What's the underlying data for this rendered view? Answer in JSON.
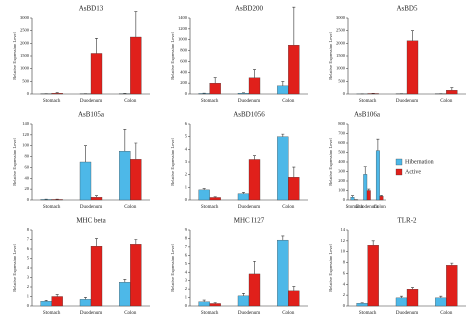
{
  "chart_data": [
    {
      "type": "bar",
      "title": "AsBD13",
      "y_label": "Relative Expression Level",
      "categories": [
        "Stomach",
        "Duodenum",
        "Colon"
      ],
      "ylim": [
        0,
        3000
      ],
      "yticks": [
        0,
        500,
        1000,
        1500,
        2000,
        2500,
        3000
      ],
      "series": [
        {
          "color": "#4db8e8",
          "values": [
            8,
            10,
            15
          ],
          "errors": [
            5,
            5,
            8
          ]
        },
        {
          "color": "#e0201b",
          "values": [
            30,
            1600,
            2250
          ],
          "errors": [
            20,
            600,
            1000
          ]
        }
      ]
    },
    {
      "type": "bar",
      "title": "AsBD200",
      "y_label": "Relative Expression Level",
      "categories": [
        "Stomach",
        "Duodenum",
        "Colon"
      ],
      "ylim": [
        0,
        1400
      ],
      "yticks": [
        0,
        200,
        400,
        600,
        800,
        1000,
        1200,
        1400
      ],
      "series": [
        {
          "color": "#4db8e8",
          "values": [
            10,
            15,
            150
          ],
          "errors": [
            5,
            8,
            80
          ]
        },
        {
          "color": "#e0201b",
          "values": [
            200,
            300,
            900
          ],
          "errors": [
            100,
            150,
            700
          ]
        }
      ]
    },
    {
      "type": "bar",
      "title": "AsBD5",
      "y_label": "Relative Expression Level",
      "categories": [
        "Stomach",
        "Duodenum",
        "Colon"
      ],
      "ylim": [
        0,
        3000
      ],
      "yticks": [
        0,
        500,
        1000,
        1500,
        2000,
        2500,
        3000
      ],
      "series": [
        {
          "color": "#4db8e8",
          "values": [
            5,
            10,
            10
          ],
          "errors": [
            3,
            5,
            5
          ]
        },
        {
          "color": "#e0201b",
          "values": [
            20,
            2100,
            150
          ],
          "errors": [
            10,
            400,
            100
          ]
        }
      ]
    },
    {
      "type": "bar",
      "title": "AsB105a",
      "y_label": "Relative Expression Level",
      "categories": [
        "Stomach",
        "Duodenum",
        "Colon"
      ],
      "ylim": [
        0,
        140
      ],
      "yticks": [
        0,
        20,
        40,
        60,
        80,
        100,
        120,
        140
      ],
      "series": [
        {
          "color": "#4db8e8",
          "values": [
            1,
            70,
            90
          ],
          "errors": [
            0.5,
            30,
            40
          ]
        },
        {
          "color": "#e0201b",
          "values": [
            1,
            5,
            75
          ],
          "errors": [
            0.5,
            3,
            30
          ]
        }
      ]
    },
    {
      "type": "bar",
      "title": "AsBD1056",
      "y_label": "Relative Expression Level",
      "categories": [
        "Stomach",
        "Duodenum",
        "Colon"
      ],
      "ylim": [
        0,
        6
      ],
      "yticks": [
        0,
        1,
        2,
        3,
        4,
        5,
        6
      ],
      "series": [
        {
          "color": "#4db8e8",
          "values": [
            0.8,
            0.5,
            5
          ],
          "errors": [
            0.1,
            0.1,
            0.2
          ]
        },
        {
          "color": "#e0201b",
          "values": [
            0.2,
            3.2,
            1.8
          ],
          "errors": [
            0.05,
            0.3,
            0.8
          ]
        }
      ]
    },
    {
      "type": "bar",
      "title": "AsB106a",
      "y_label": "Relative Expression Level",
      "categories": [
        "Stomach",
        "Duodenum",
        "Colon"
      ],
      "ylim": [
        0,
        800
      ],
      "yticks": [
        0,
        100,
        200,
        300,
        400,
        500,
        600,
        700,
        800
      ],
      "legend": "right",
      "series": [
        {
          "name": "Hibernation",
          "color": "#4db8e8",
          "values": [
            30,
            270,
            520
          ],
          "errors": [
            15,
            80,
            120
          ]
        },
        {
          "name": "Active",
          "color": "#e0201b",
          "values": [
            2,
            100,
            40
          ],
          "errors": [
            1,
            15,
            8
          ]
        }
      ]
    },
    {
      "type": "bar",
      "title": "MHC beta",
      "y_label": "Relative Expression Level",
      "categories": [
        "Stomach",
        "Duodenum",
        "Colon"
      ],
      "ylim": [
        0,
        8
      ],
      "yticks": [
        0,
        1,
        2,
        3,
        4,
        5,
        6,
        7,
        8
      ],
      "series": [
        {
          "color": "#4db8e8",
          "values": [
            0.5,
            0.7,
            2.5
          ],
          "errors": [
            0.1,
            0.2,
            0.3
          ]
        },
        {
          "color": "#e0201b",
          "values": [
            1,
            6.3,
            6.5
          ],
          "errors": [
            0.2,
            0.8,
            0.5
          ]
        }
      ]
    },
    {
      "type": "bar",
      "title": "MHC I127",
      "y_label": "Relative Expression Level",
      "categories": [
        "Stomach",
        "Duodenum",
        "Colon"
      ],
      "ylim": [
        0,
        9
      ],
      "yticks": [
        0,
        1,
        2,
        3,
        4,
        5,
        6,
        7,
        8,
        9
      ],
      "series": [
        {
          "color": "#4db8e8",
          "values": [
            0.5,
            1.2,
            7.8
          ],
          "errors": [
            0.2,
            0.3,
            0.5
          ]
        },
        {
          "color": "#e0201b",
          "values": [
            0.3,
            3.8,
            1.8
          ],
          "errors": [
            0.1,
            1.5,
            0.5
          ]
        }
      ]
    },
    {
      "type": "bar",
      "title": "TLR-2",
      "y_label": "Relative Expression Level",
      "categories": [
        "Stomach",
        "Duodenum",
        "Colon"
      ],
      "ylim": [
        0,
        14
      ],
      "yticks": [
        0,
        2,
        4,
        6,
        8,
        10,
        12,
        14
      ],
      "series": [
        {
          "color": "#4db8e8",
          "values": [
            0.5,
            1.5,
            1.5
          ],
          "errors": [
            0.1,
            0.3,
            0.3
          ]
        },
        {
          "color": "#e0201b",
          "values": [
            11.2,
            3.1,
            7.5
          ],
          "errors": [
            0.8,
            0.3,
            0.4
          ]
        }
      ]
    }
  ]
}
